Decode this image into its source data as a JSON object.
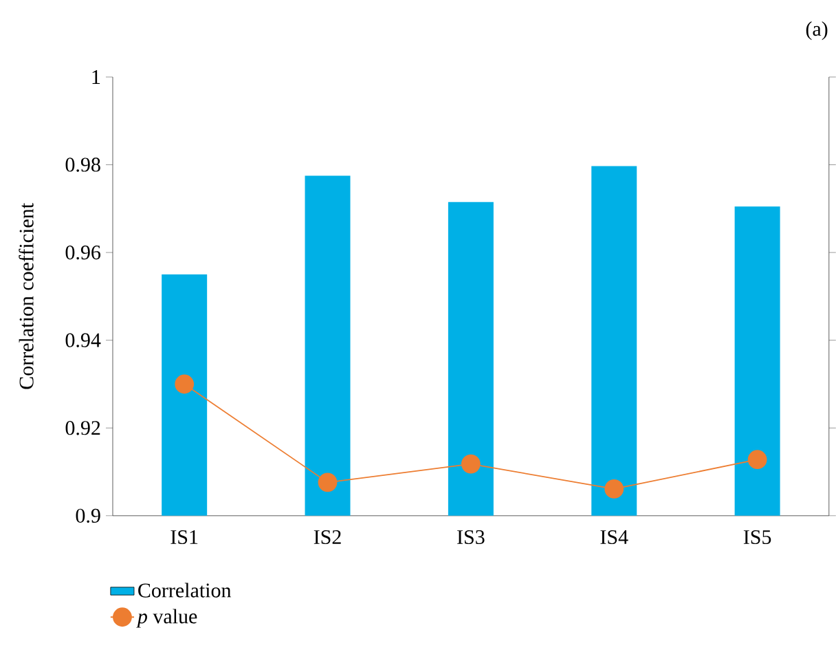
{
  "chart_data": {
    "type": "bar",
    "ylabel": "Correlation coefficient",
    "categories": [
      "IS1",
      "IS2",
      "IS3",
      "IS4",
      "IS5"
    ],
    "series": [
      {
        "name": "Correlation",
        "color": "#00b0e6",
        "values": [
          0.955,
          0.9775,
          0.9715,
          0.9797,
          0.9705
        ]
      },
      {
        "name": "*p* value",
        "type": "line",
        "color": "#ed7d31",
        "marker": "circle",
        "values": [
          0.93,
          0.9076,
          0.9118,
          0.9061,
          0.9128
        ]
      }
    ],
    "ylim": [
      0.9,
      1
    ],
    "yticks": [
      0.9,
      0.92,
      0.94,
      0.96,
      0.98,
      1
    ],
    "legend": "bottom",
    "annotations": [
      "(a)"
    ]
  }
}
